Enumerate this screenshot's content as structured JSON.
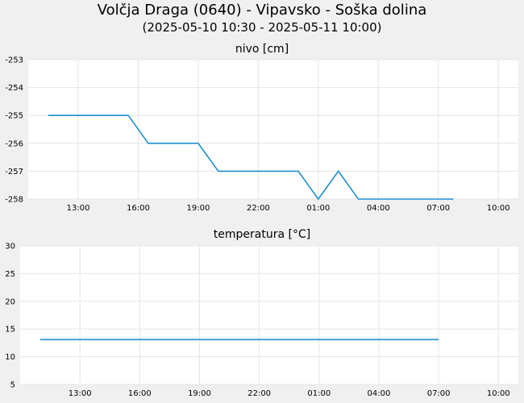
{
  "title": "Volčja Draga (0640) - Vipavsko - Soška dolina",
  "subtitle": "(2025-05-10 10:30 - 2025-05-11 10:00)",
  "colors": {
    "series": "#1f8fd1",
    "grid": "#e6e6e6",
    "plot_bg": "#ffffff",
    "page_bg": "#f0f0f0"
  },
  "chart_data": [
    {
      "type": "line",
      "title": "nivo [cm]",
      "xlabel": "",
      "ylabel": "",
      "x_tick_labels": [
        "13:00",
        "16:00",
        "19:00",
        "22:00",
        "01:00",
        "04:00",
        "07:00",
        "10:00"
      ],
      "x_tick_hours": [
        13,
        16,
        19,
        22,
        25,
        28,
        31,
        34
      ],
      "xlim_hours": [
        10.5,
        35
      ],
      "ylim": [
        -258,
        -253
      ],
      "y_ticks": [
        -258,
        -257,
        -256,
        -255,
        -254,
        -253
      ],
      "grid": true,
      "series": [
        {
          "x_hours": [
            11.5,
            15.5,
            16.5,
            19.0,
            20.0,
            24.0,
            25.0,
            26.0,
            27.0,
            31.75
          ],
          "values": [
            -255,
            -255,
            -256,
            -256,
            -257,
            -257,
            -258,
            -257,
            -258,
            -258
          ]
        }
      ]
    },
    {
      "type": "line",
      "title": "temperatura [°C]",
      "xlabel": "",
      "ylabel": "",
      "x_tick_labels": [
        "13:00",
        "16:00",
        "19:00",
        "22:00",
        "01:00",
        "04:00",
        "07:00",
        "10:00"
      ],
      "x_tick_hours": [
        13,
        16,
        19,
        22,
        25,
        28,
        31,
        34
      ],
      "xlim_hours": [
        10.0,
        35
      ],
      "ylim": [
        5,
        30
      ],
      "y_ticks": [
        5,
        10,
        15,
        20,
        25,
        30
      ],
      "grid": true,
      "series": [
        {
          "x_hours": [
            11.0,
            31.0
          ],
          "values": [
            13.1,
            13.1
          ]
        }
      ]
    }
  ]
}
